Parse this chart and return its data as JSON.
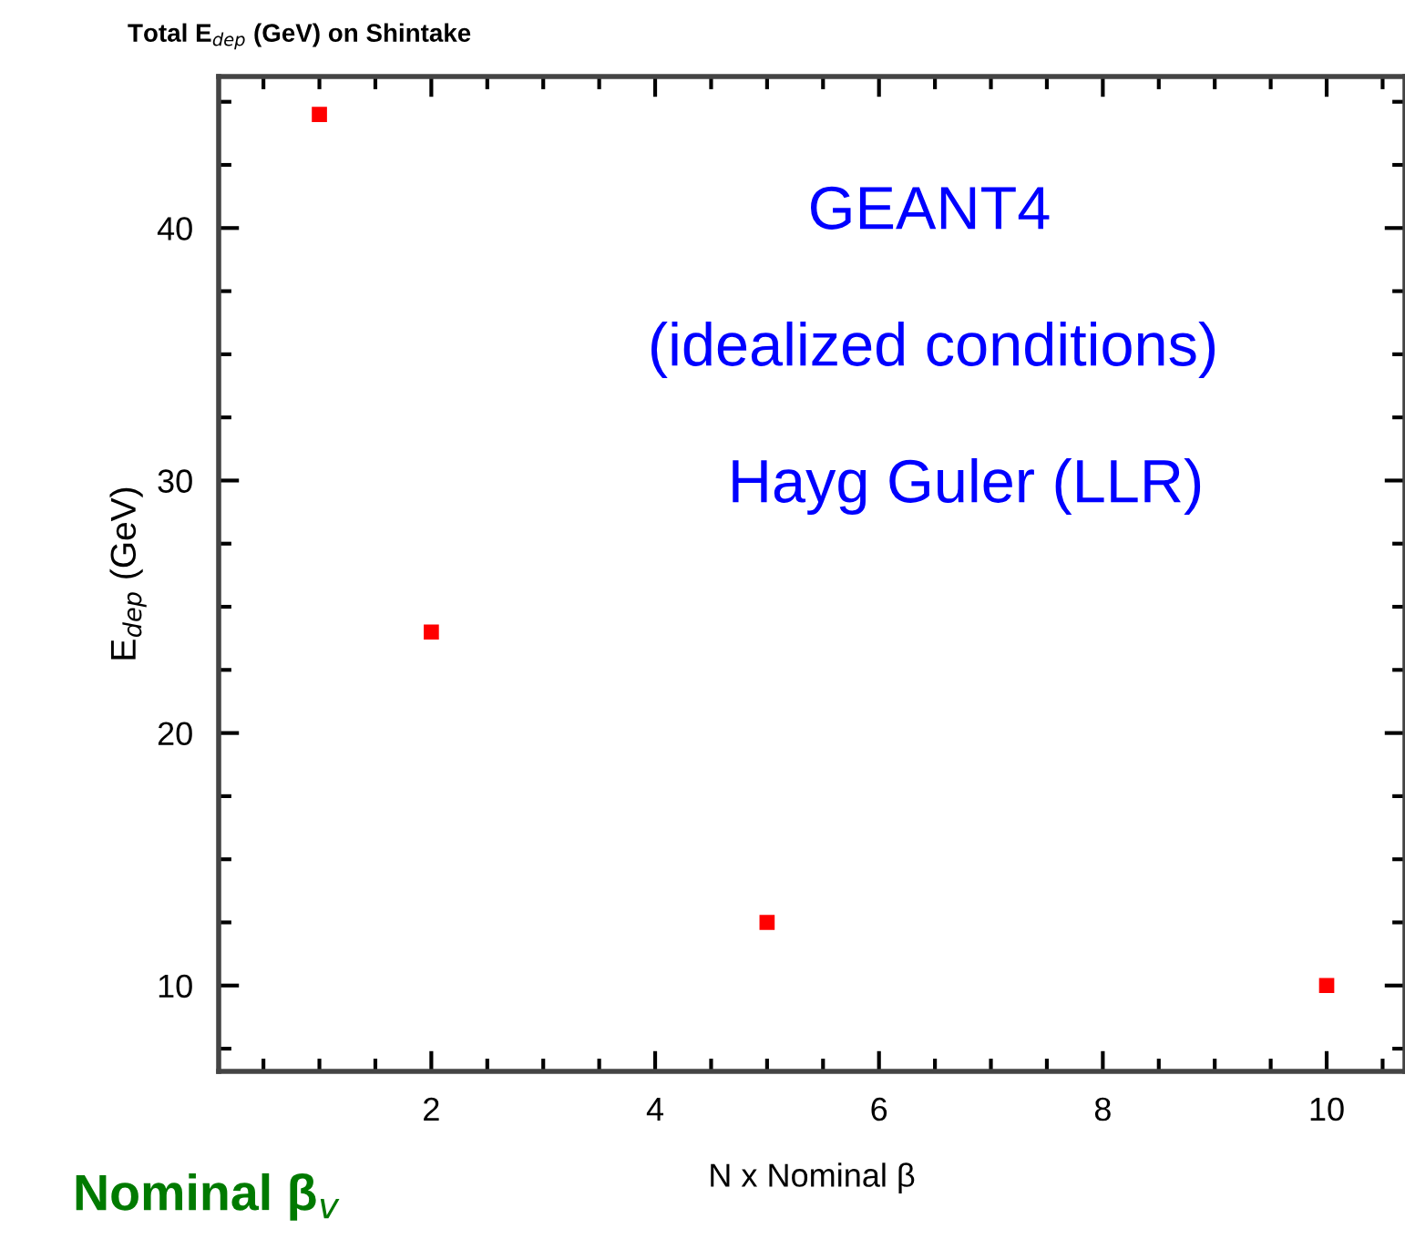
{
  "chart_data": {
    "type": "scatter",
    "title": "Total E$_{dep}$ (GeV) on Shintake",
    "xlabel": "N x Nominal β",
    "ylabel": "E$_{dep}$ (GeV)",
    "x": [
      1,
      2,
      5,
      10
    ],
    "series": [
      {
        "color": "#ff0000",
        "values": [
          44.5,
          24.0,
          12.5,
          10.0
        ]
      }
    ],
    "xlim": [
      0.1,
      10.7
    ],
    "xticks": [
      2,
      4,
      6,
      8,
      10
    ],
    "ylim": [
      6.6,
      46
    ],
    "yticks": [
      10,
      20,
      30,
      40
    ],
    "marker": "square",
    "grid": false,
    "annotations": [
      "GEANT4",
      "(idealized conditions)",
      "Hayg Guler (LLR)",
      "Nominal β$_{v}$"
    ]
  }
}
